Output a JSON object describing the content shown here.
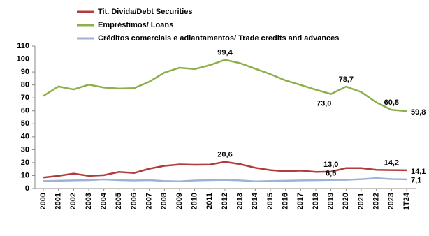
{
  "chart_data": {
    "type": "line",
    "categories": [
      "2000",
      "2001",
      "2002",
      "2003",
      "2004",
      "2005",
      "2006",
      "2007",
      "2008",
      "2009",
      "2010",
      "2011",
      "2012",
      "2013",
      "2014",
      "2015",
      "2016",
      "2017",
      "2018",
      "2019",
      "2020",
      "2021",
      "2022",
      "2023",
      "1T24"
    ],
    "series": [
      {
        "name": "Tit. Divida/Debt Securities",
        "color": "#b23c3c",
        "values": [
          8.5,
          9.8,
          11.5,
          9.8,
          10.3,
          12.8,
          12.0,
          15.3,
          17.5,
          18.6,
          18.3,
          18.5,
          20.6,
          18.8,
          16.0,
          14.2,
          13.3,
          13.8,
          12.8,
          13.0,
          15.8,
          15.8,
          14.4,
          14.2,
          14.1
        ],
        "value_labels": [
          null,
          null,
          null,
          null,
          null,
          null,
          null,
          null,
          null,
          null,
          null,
          null,
          "20,6",
          null,
          null,
          null,
          null,
          null,
          null,
          "13,0",
          null,
          null,
          null,
          "14,2",
          "14,1"
        ]
      },
      {
        "name": "Empréstimos/ Loans",
        "color": "#8db04a",
        "values": [
          71.5,
          78.8,
          76.5,
          80.2,
          78.0,
          77.2,
          77.5,
          82.5,
          89.5,
          93.3,
          92.3,
          95.3,
          99.4,
          96.8,
          92.5,
          88.3,
          83.5,
          80.0,
          76.3,
          73.0,
          78.7,
          74.5,
          66.5,
          60.8,
          59.8
        ],
        "value_labels": [
          null,
          null,
          null,
          null,
          null,
          null,
          null,
          null,
          null,
          null,
          null,
          null,
          "99,4",
          null,
          null,
          null,
          null,
          null,
          null,
          "73,0",
          "78,7",
          null,
          null,
          "60,8",
          "59,8"
        ]
      },
      {
        "name": "Créditos comerciais e adiantamentos/ Trade credits and advances",
        "color": "#9bb3d9",
        "values": [
          5.7,
          6.0,
          6.3,
          6.5,
          7.0,
          6.5,
          6.2,
          6.5,
          5.8,
          5.5,
          6.2,
          6.5,
          6.7,
          6.3,
          5.5,
          5.8,
          6.0,
          6.3,
          6.4,
          6.6,
          6.7,
          7.2,
          8.0,
          7.3,
          7.1
        ],
        "value_labels": [
          null,
          null,
          null,
          null,
          null,
          null,
          null,
          null,
          null,
          null,
          null,
          null,
          null,
          null,
          null,
          null,
          null,
          null,
          null,
          "6,6",
          null,
          null,
          null,
          null,
          "7,1"
        ]
      }
    ],
    "ylim": [
      0,
      110
    ],
    "yticks": [
      0,
      10,
      20,
      30,
      40,
      50,
      60,
      70,
      80,
      90,
      100,
      110
    ],
    "grid": false,
    "legend": "top"
  }
}
